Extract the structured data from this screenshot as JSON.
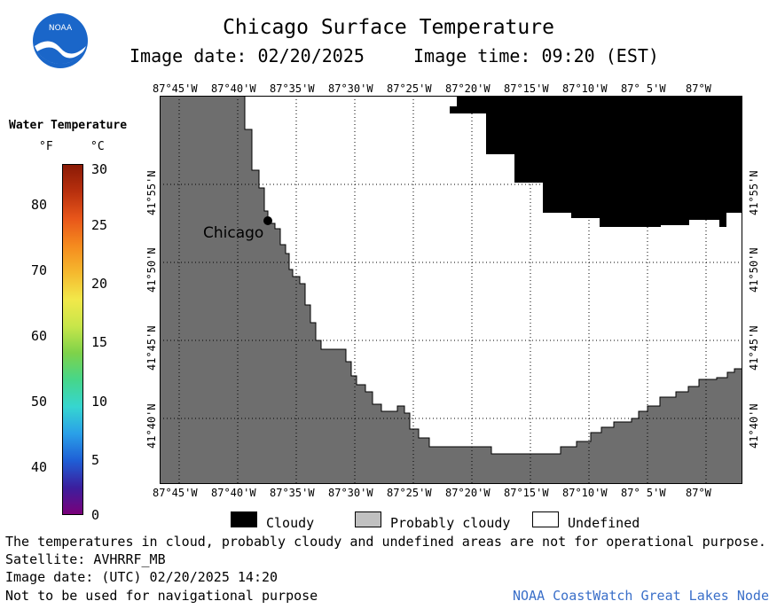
{
  "title": "Chicago Surface Temperature",
  "image_date": "Image date: 02/20/2025",
  "image_time": "Image time: 09:20 (EST)",
  "logo_text": "NOAA",
  "colorbar": {
    "title": "Water Temperature",
    "unit_f": "°F",
    "unit_c": "°C",
    "ticks_f": [
      "80",
      "70",
      "60",
      "50",
      "40"
    ],
    "ticks_c": [
      "30",
      "25",
      "20",
      "15",
      "10",
      "5",
      "0"
    ],
    "colors": [
      "#7a007a",
      "#3b1f9e",
      "#1f5fd6",
      "#2aa0e8",
      "#36d6d0",
      "#46d68a",
      "#7ed24a",
      "#c8e64a",
      "#f2e84a",
      "#f5b82e",
      "#f58a1e",
      "#e8561a",
      "#b8300e",
      "#8a1a06"
    ]
  },
  "lon_labels": [
    "87°45'W",
    "87°40'W",
    "87°35'W",
    "87°30'W",
    "87°25'W",
    "87°20'W",
    "87°15'W",
    "87°10'W",
    "87° 5'W",
    "87°W"
  ],
  "lat_labels": [
    "41°55'N",
    "41°50'N",
    "41°45'N",
    "41°40'N"
  ],
  "map": {
    "city_label": "Chicago",
    "land_color": "#6e6e6e",
    "cloud_color": "#000000",
    "water_color": "#ffffff"
  },
  "legend": {
    "cloudy": "Cloudy",
    "probably_cloudy": "Probably cloudy",
    "undefined": "Undefined",
    "cloudy_color": "#000000",
    "probably_cloudy_color": "#c0c0c0",
    "undefined_color": "#ffffff"
  },
  "info": {
    "disclaimer": "The temperatures in cloud, probably cloudy and undefined areas are not for operational purpose.",
    "satellite": "Satellite: AVHRRF_MB",
    "utc_date": "Image date: (UTC) 02/20/2025  14:20",
    "nav_warning": "Not to be used for navigational purpose"
  },
  "footer_right": "NOAA CoastWatch Great Lakes Node"
}
